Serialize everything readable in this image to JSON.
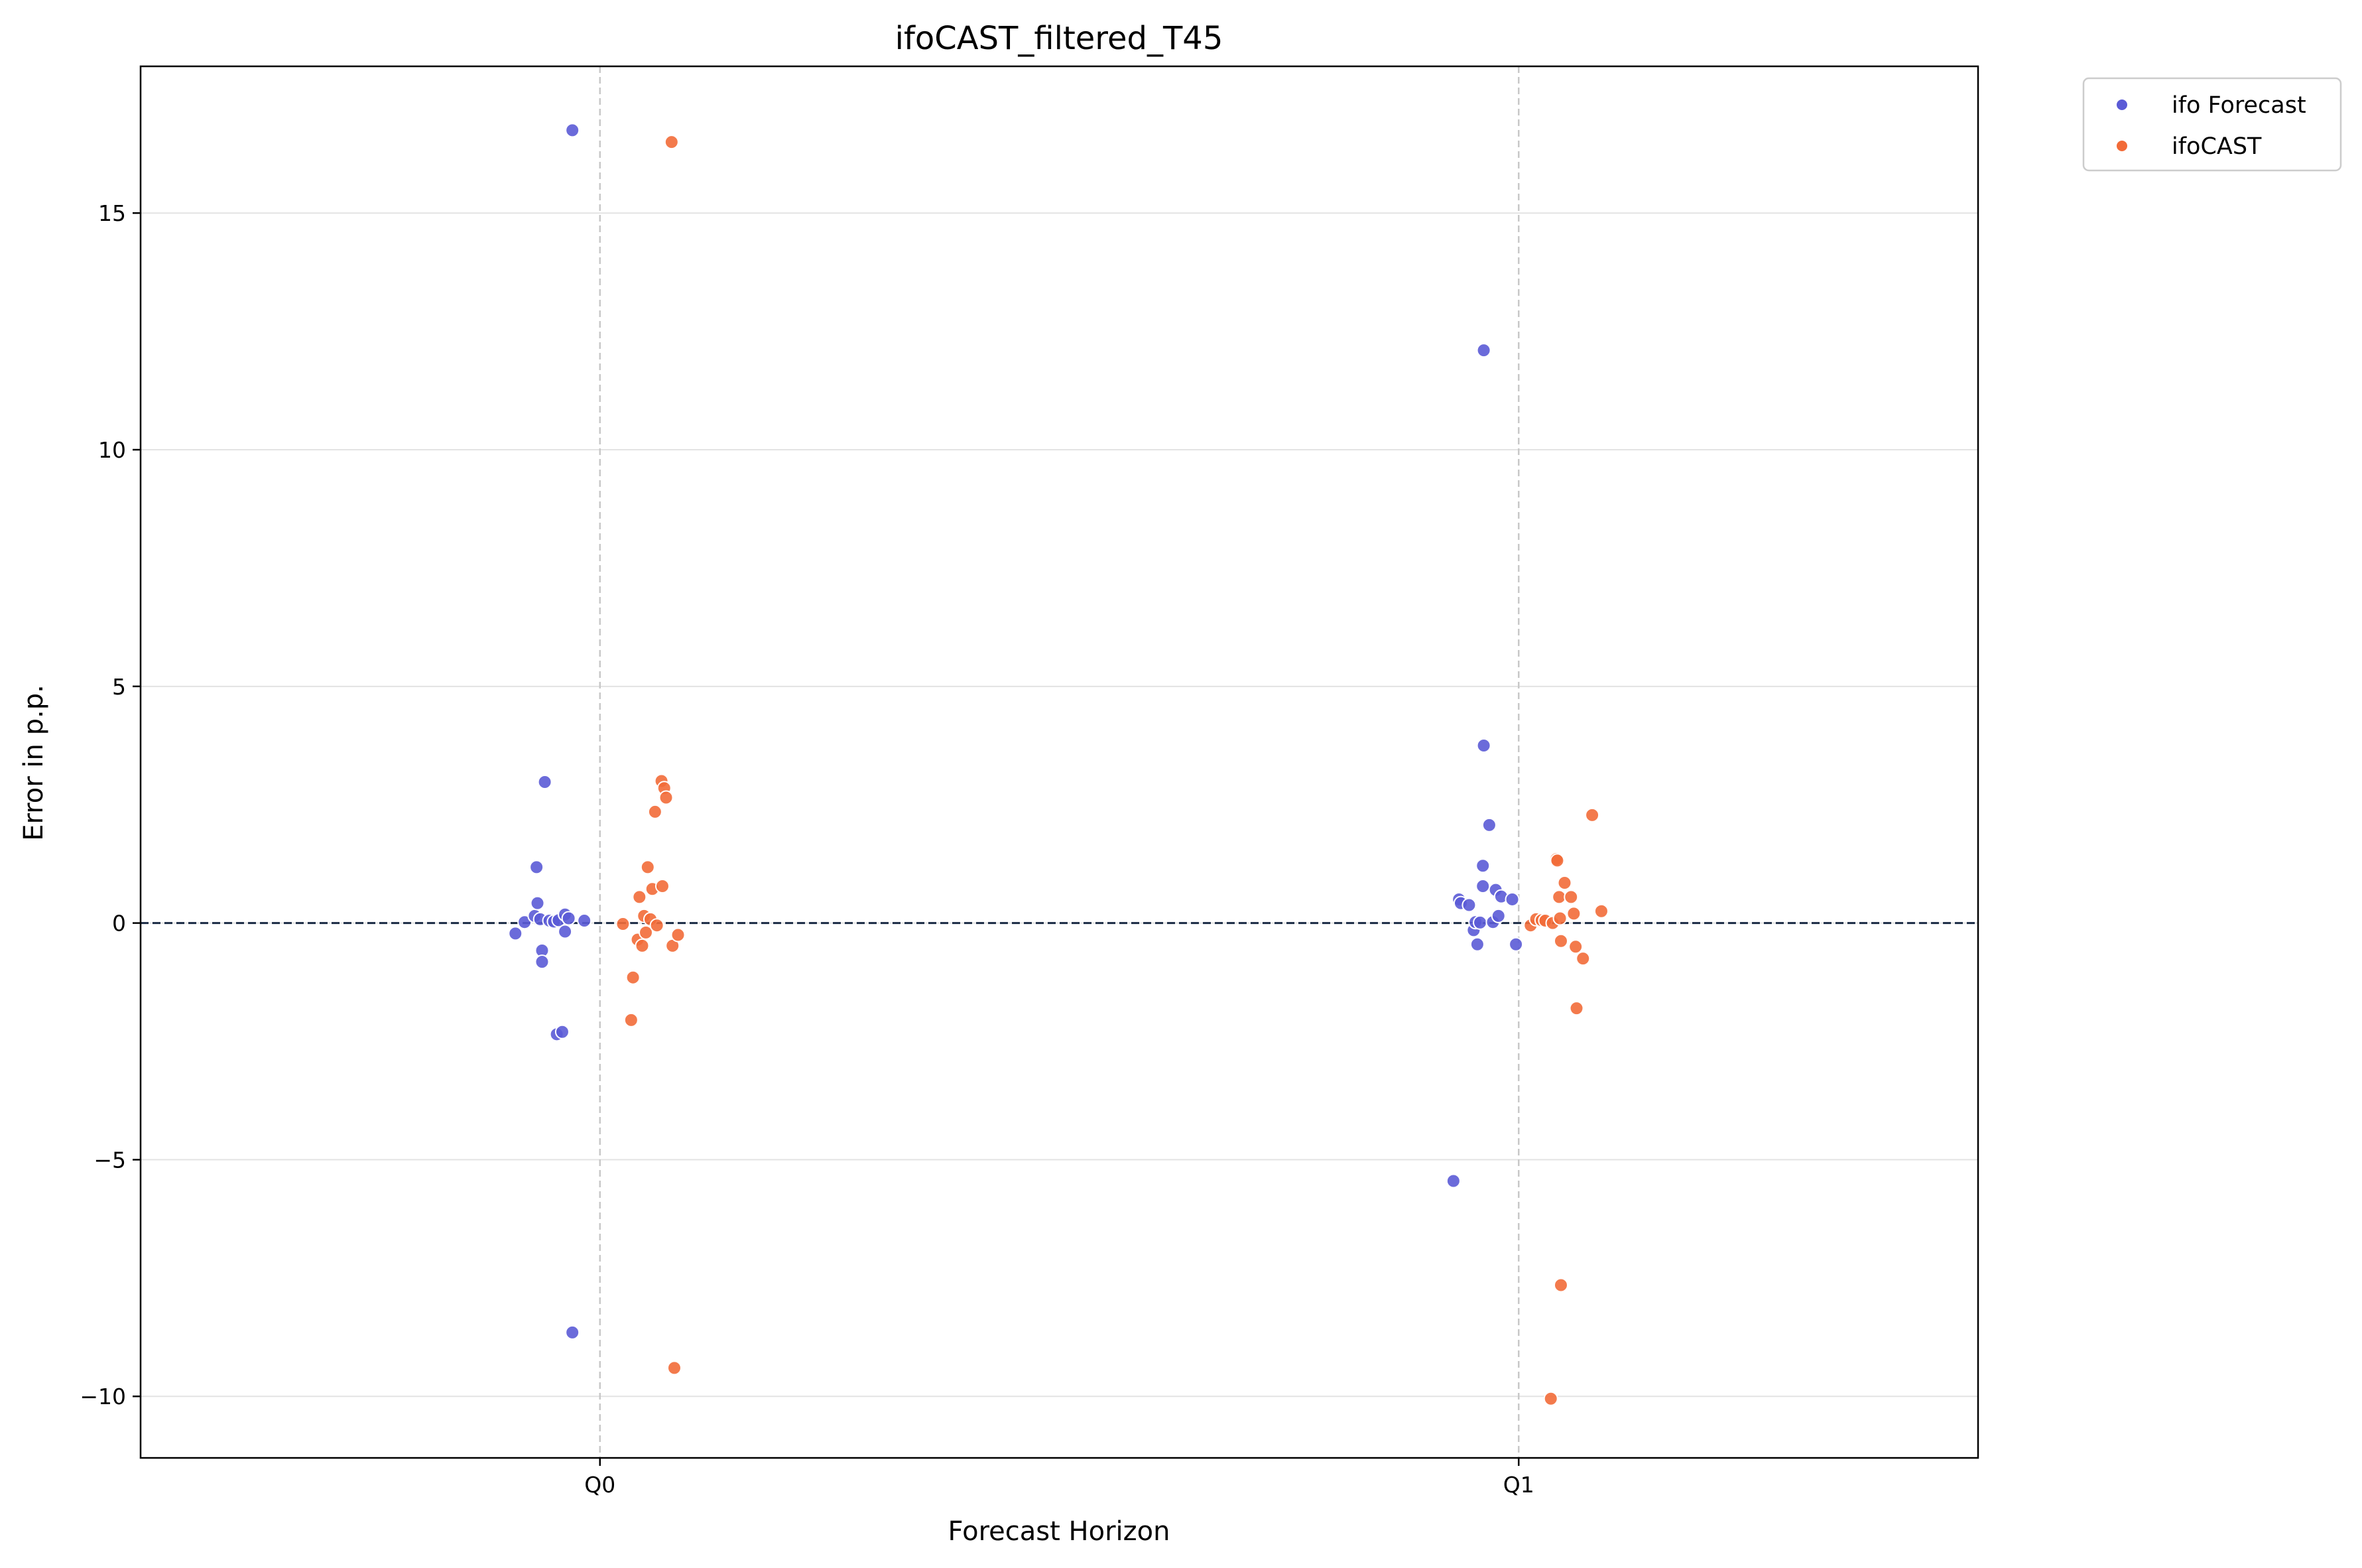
{
  "chart_data": {
    "type": "scatter",
    "title": "ifoCAST_filtered_T45",
    "xlabel": "Forecast Horizon",
    "ylabel": "Error in p.p.",
    "categories": [
      "Q0",
      "Q1"
    ],
    "xlim": [
      -0.5,
      1.5
    ],
    "ylim": [
      -11.3,
      18.1
    ],
    "yticks": [
      -10,
      -5,
      0,
      5,
      10,
      15
    ],
    "ytick_labels": [
      "−10",
      "−5",
      "0",
      "5",
      "10",
      "15"
    ],
    "grid": "horizontal",
    "reference_line": 0,
    "legend_position": "outside top-right",
    "series": [
      {
        "name": "ifo Forecast",
        "color": "#5b5bd6",
        "points": [
          {
            "x": -0.092,
            "y": -0.22
          },
          {
            "x": -0.082,
            "y": 0.02
          },
          {
            "x": -0.071,
            "y": 0.15
          },
          {
            "x": -0.069,
            "y": 1.18
          },
          {
            "x": -0.068,
            "y": 0.42
          },
          {
            "x": -0.065,
            "y": 0.08
          },
          {
            "x": -0.063,
            "y": -0.58
          },
          {
            "x": -0.063,
            "y": -0.82
          },
          {
            "x": -0.06,
            "y": 2.98
          },
          {
            "x": -0.055,
            "y": 0.05
          },
          {
            "x": -0.05,
            "y": 0.03
          },
          {
            "x": -0.047,
            "y": -2.35
          },
          {
            "x": -0.045,
            "y": 0.06
          },
          {
            "x": -0.041,
            "y": -2.3
          },
          {
            "x": -0.038,
            "y": 0.18
          },
          {
            "x": -0.038,
            "y": -0.18
          },
          {
            "x": -0.034,
            "y": 0.1
          },
          {
            "x": -0.03,
            "y": 16.75
          },
          {
            "x": -0.03,
            "y": -8.65
          },
          {
            "x": -0.017,
            "y": 0.05
          },
          {
            "x": 0.929,
            "y": -5.45
          },
          {
            "x": 0.935,
            "y": 0.5
          },
          {
            "x": 0.937,
            "y": 0.42
          },
          {
            "x": 0.946,
            "y": 0.38
          },
          {
            "x": 0.951,
            "y": -0.15
          },
          {
            "x": 0.953,
            "y": 0.02
          },
          {
            "x": 0.955,
            "y": -0.45
          },
          {
            "x": 0.958,
            "y": 0.01
          },
          {
            "x": 0.961,
            "y": 1.21
          },
          {
            "x": 0.961,
            "y": 0.78
          },
          {
            "x": 0.962,
            "y": 12.1
          },
          {
            "x": 0.962,
            "y": 3.75
          },
          {
            "x": 0.968,
            "y": 2.07
          },
          {
            "x": 0.972,
            "y": 0.02
          },
          {
            "x": 0.975,
            "y": 0.7
          },
          {
            "x": 0.978,
            "y": 0.15
          },
          {
            "x": 0.981,
            "y": 0.56
          },
          {
            "x": 0.993,
            "y": 0.5
          },
          {
            "x": 0.997,
            "y": -0.45
          }
        ]
      },
      {
        "name": "ifoCAST",
        "color": "#f26b38",
        "points": [
          {
            "x": 0.025,
            "y": -0.02
          },
          {
            "x": 0.034,
            "y": -2.05
          },
          {
            "x": 0.036,
            "y": -1.15
          },
          {
            "x": 0.041,
            "y": -0.35
          },
          {
            "x": 0.043,
            "y": 0.55
          },
          {
            "x": 0.046,
            "y": -0.48
          },
          {
            "x": 0.048,
            "y": 0.15
          },
          {
            "x": 0.05,
            "y": -0.2
          },
          {
            "x": 0.052,
            "y": 1.18
          },
          {
            "x": 0.055,
            "y": 0.08
          },
          {
            "x": 0.057,
            "y": 0.72
          },
          {
            "x": 0.06,
            "y": 2.35
          },
          {
            "x": 0.062,
            "y": -0.05
          },
          {
            "x": 0.067,
            "y": 3.0
          },
          {
            "x": 0.068,
            "y": 0.78
          },
          {
            "x": 0.07,
            "y": 2.85
          },
          {
            "x": 0.072,
            "y": 2.65
          },
          {
            "x": 0.078,
            "y": 16.5
          },
          {
            "x": 0.079,
            "y": -0.48
          },
          {
            "x": 0.081,
            "y": -9.4
          },
          {
            "x": 0.085,
            "y": -0.25
          },
          {
            "x": 1.013,
            "y": -0.05
          },
          {
            "x": 1.019,
            "y": 0.08
          },
          {
            "x": 1.025,
            "y": 0.06
          },
          {
            "x": 1.029,
            "y": 0.05
          },
          {
            "x": 1.035,
            "y": -10.05
          },
          {
            "x": 1.037,
            "y": 0.0
          },
          {
            "x": 1.041,
            "y": 1.35
          },
          {
            "x": 1.042,
            "y": 1.32
          },
          {
            "x": 1.044,
            "y": 0.55
          },
          {
            "x": 1.045,
            "y": 0.1
          },
          {
            "x": 1.046,
            "y": -0.38
          },
          {
            "x": 1.046,
            "y": -7.65
          },
          {
            "x": 1.05,
            "y": 0.85
          },
          {
            "x": 1.057,
            "y": 0.55
          },
          {
            "x": 1.06,
            "y": 0.2
          },
          {
            "x": 1.062,
            "y": -0.5
          },
          {
            "x": 1.063,
            "y": -1.8
          },
          {
            "x": 1.07,
            "y": -0.75
          },
          {
            "x": 1.08,
            "y": 2.28
          },
          {
            "x": 1.09,
            "y": 0.25
          }
        ]
      }
    ]
  }
}
